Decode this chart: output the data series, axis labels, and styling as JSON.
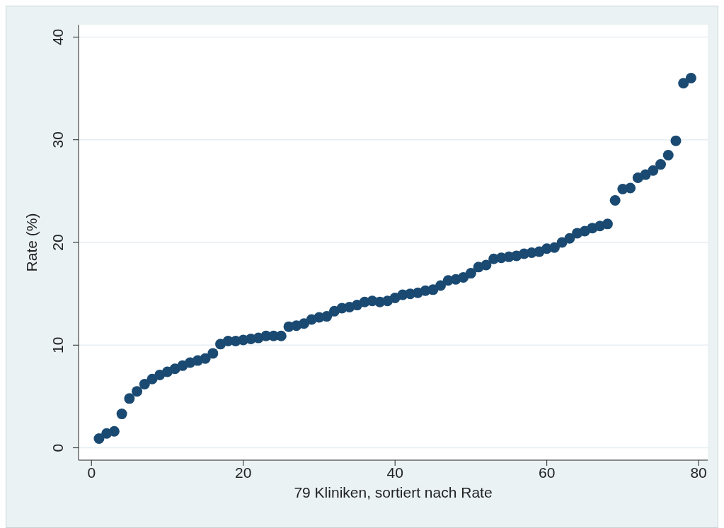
{
  "chart_data": {
    "type": "scatter",
    "xlabel": "79 Kliniken, sortiert nach Rate",
    "ylabel": "Rate (%)",
    "x": [
      1,
      2,
      3,
      4,
      5,
      6,
      7,
      8,
      9,
      10,
      11,
      12,
      13,
      14,
      15,
      16,
      17,
      18,
      19,
      20,
      21,
      22,
      23,
      24,
      25,
      26,
      27,
      28,
      29,
      30,
      31,
      32,
      33,
      34,
      35,
      36,
      37,
      38,
      39,
      40,
      41,
      42,
      43,
      44,
      45,
      46,
      47,
      48,
      49,
      50,
      51,
      52,
      53,
      54,
      55,
      56,
      57,
      58,
      59,
      60,
      61,
      62,
      63,
      64,
      65,
      66,
      67,
      68,
      69,
      70,
      71,
      72,
      73,
      74,
      75,
      76,
      77,
      78,
      79
    ],
    "series": [
      {
        "color": "#1a4a72",
        "values": [
          0.9,
          1.4,
          1.6,
          3.3,
          4.8,
          5.5,
          6.2,
          6.7,
          7.1,
          7.4,
          7.7,
          8.0,
          8.3,
          8.5,
          8.7,
          9.2,
          10.1,
          10.4,
          10.4,
          10.5,
          10.6,
          10.7,
          10.9,
          10.9,
          10.9,
          11.8,
          11.9,
          12.1,
          12.5,
          12.7,
          12.8,
          13.3,
          13.6,
          13.7,
          13.9,
          14.2,
          14.3,
          14.2,
          14.3,
          14.6,
          14.9,
          15.0,
          15.1,
          15.3,
          15.4,
          15.8,
          16.3,
          16.4,
          16.6,
          17.0,
          17.6,
          17.8,
          18.4,
          18.5,
          18.6,
          18.7,
          18.9,
          19.0,
          19.1,
          19.4,
          19.5,
          20.0,
          20.4,
          20.9,
          21.1,
          21.4,
          21.6,
          21.8,
          24.1,
          25.2,
          25.3,
          26.3,
          26.6,
          27.0,
          27.6,
          28.5,
          29.9,
          35.5,
          36.0
        ]
      }
    ],
    "xlim": [
      -1.7,
      81.2
    ],
    "xticks": [
      0,
      20,
      40,
      60,
      80
    ],
    "ylim": [
      -1.2,
      41.2
    ],
    "yticks": [
      0,
      10,
      20,
      30,
      40
    ],
    "grid": "y",
    "marker": "circle",
    "legend": false
  }
}
